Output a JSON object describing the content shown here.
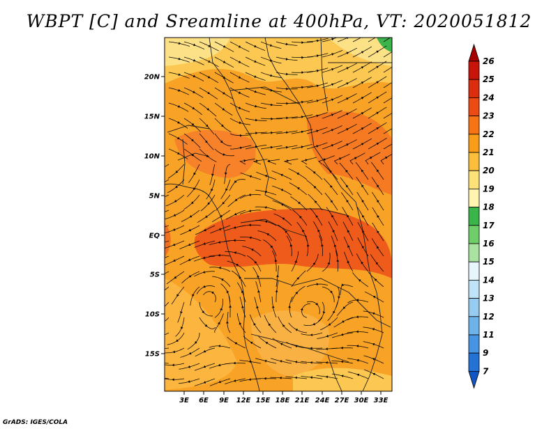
{
  "title": "WBPT [C] and Sreamline at 400hPa, VT: 2020051812",
  "credit": "GrADS: IGES/COLA",
  "map": {
    "lat_ticks": [
      "20N",
      "15N",
      "10N",
      "5N",
      "EQ",
      "5S",
      "10S",
      "15S"
    ],
    "lon_ticks": [
      "3E",
      "6E",
      "9E",
      "12E",
      "15E",
      "18E",
      "21E",
      "24E",
      "27E",
      "30E",
      "33E"
    ],
    "field": "WBPT",
    "units": "C",
    "level": "400hPa",
    "valid_time": "2020051812"
  },
  "colorbar": {
    "labels": [
      "26",
      "25",
      "24",
      "23",
      "22",
      "21",
      "20",
      "19",
      "18",
      "17",
      "16",
      "15",
      "14",
      "13",
      "12",
      "11",
      "9",
      "7"
    ],
    "colors": [
      "#a50000",
      "#c8140a",
      "#dc2d0f",
      "#ee4b14",
      "#f87314",
      "#f99c18",
      "#fbbf3c",
      "#fde27a",
      "#fff4b0",
      "#39b54a",
      "#6fce6a",
      "#a8e3a0",
      "#e7f6fa",
      "#bfe4f7",
      "#96ccf1",
      "#6eb2ea",
      "#4694e2",
      "#2472d6",
      "#1255c4"
    ]
  }
}
